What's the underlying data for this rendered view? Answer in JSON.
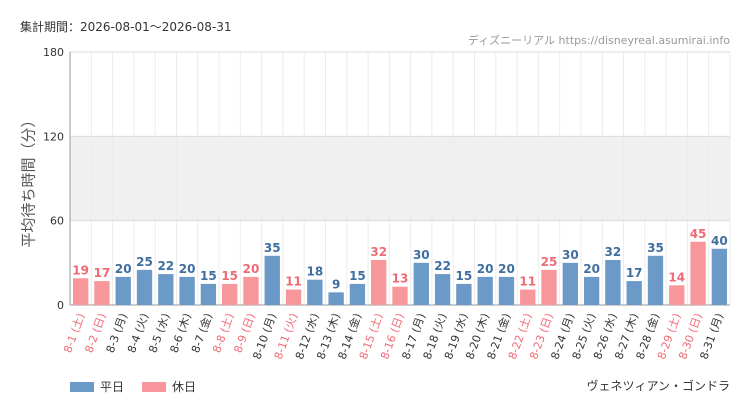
{
  "header": {
    "period": "集計期間：2026-08-01～2026-08-31",
    "source": "ディズニーリアル https://disneyreal.asumirai.info"
  },
  "footer": {
    "attraction": "ヴェネツィアン・ゴンドラ"
  },
  "colors": {
    "weekday": "#6b9ac8",
    "holiday": "#f7969b",
    "weekday_label": "#3f6fa0",
    "holiday_label": "#ef6a74",
    "xlabel_weekday": "#333333",
    "xlabel_holiday": "#ef6a74",
    "band": "#f0f0f0",
    "grid": "#dcdcdc"
  },
  "chart_data": {
    "type": "bar",
    "title": "",
    "xlabel": "",
    "ylabel": "平均待ち時間（分）",
    "ylim": [
      0,
      180
    ],
    "yticks": [
      0,
      60,
      120,
      180
    ],
    "band": [
      60,
      120
    ],
    "grid": true,
    "legend_position": "bottom-left",
    "series": [
      {
        "name": "平日",
        "key": "weekday"
      },
      {
        "name": "休日",
        "key": "holiday"
      }
    ],
    "categories": [
      "8-1 (土)",
      "8-2 (日)",
      "8-3 (月)",
      "8-4 (火)",
      "8-5 (水)",
      "8-6 (木)",
      "8-7 (金)",
      "8-8 (土)",
      "8-9 (日)",
      "8-10 (月)",
      "8-11 (火)",
      "8-12 (水)",
      "8-13 (木)",
      "8-14 (金)",
      "8-15 (土)",
      "8-16 (日)",
      "8-17 (月)",
      "8-18 (火)",
      "8-19 (水)",
      "8-20 (木)",
      "8-21 (金)",
      "8-22 (土)",
      "8-23 (日)",
      "8-24 (月)",
      "8-25 (火)",
      "8-26 (水)",
      "8-27 (木)",
      "8-28 (金)",
      "8-29 (土)",
      "8-30 (日)",
      "8-31 (月)"
    ],
    "values": [
      19,
      17,
      20,
      25,
      22,
      20,
      15,
      15,
      20,
      35,
      11,
      18,
      9,
      15,
      32,
      13,
      30,
      22,
      15,
      20,
      20,
      11,
      25,
      30,
      20,
      32,
      17,
      35,
      14,
      45,
      40
    ],
    "day_type": [
      "holiday",
      "holiday",
      "weekday",
      "weekday",
      "weekday",
      "weekday",
      "weekday",
      "holiday",
      "holiday",
      "weekday",
      "holiday",
      "weekday",
      "weekday",
      "weekday",
      "holiday",
      "holiday",
      "weekday",
      "weekday",
      "weekday",
      "weekday",
      "weekday",
      "holiday",
      "holiday",
      "weekday",
      "weekday",
      "weekday",
      "weekday",
      "weekday",
      "holiday",
      "holiday",
      "weekday"
    ]
  }
}
